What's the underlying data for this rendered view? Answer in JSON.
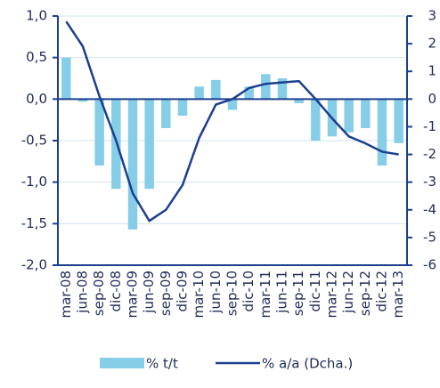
{
  "chart_data": {
    "type": "bar",
    "categories": [
      "mar-08",
      "jun-08",
      "sep-08",
      "dic-08",
      "mar-09",
      "jun-09",
      "sep-09",
      "dic-09",
      "mar-10",
      "jun-10",
      "sep-10",
      "dic-10",
      "mar-11",
      "jun-11",
      "sep-11",
      "dic-11",
      "mar-12",
      "jun-12",
      "sep-12",
      "dic-12",
      "mar-13"
    ],
    "series": [
      {
        "name": "% t/t",
        "type": "bar",
        "color": "#86cde8",
        "values": [
          0.5,
          -0.03,
          -0.8,
          -1.08,
          -1.57,
          -1.08,
          -0.35,
          -0.2,
          0.15,
          0.23,
          -0.13,
          0.15,
          0.3,
          0.25,
          -0.05,
          -0.5,
          -0.45,
          -0.4,
          -0.35,
          -0.8,
          -0.53
        ]
      },
      {
        "name": "% a/a (Dcha.)",
        "type": "line",
        "axis": "y2",
        "color": "#1b3f8f",
        "values": [
          2.8,
          1.9,
          0.1,
          -1.5,
          -3.4,
          -4.4,
          -4.0,
          -3.1,
          -1.4,
          -0.2,
          0.0,
          0.4,
          0.55,
          0.6,
          0.65,
          0.0,
          -0.7,
          -1.35,
          -1.6,
          -1.9,
          -2.0
        ]
      }
    ],
    "ylim": [
      -2.0,
      1.0
    ],
    "yticks": [
      {
        "value": 1.0,
        "label": "1,0"
      },
      {
        "value": 0.5,
        "label": "0,5"
      },
      {
        "value": 0.0,
        "label": "0,0"
      },
      {
        "value": -0.5,
        "label": "-0,5"
      },
      {
        "value": -1.0,
        "label": "-1,0"
      },
      {
        "value": -1.5,
        "label": "-1,5"
      },
      {
        "value": -2.0,
        "label": "-2,0"
      }
    ],
    "y2lim": [
      -6,
      3
    ],
    "y2ticks": [
      3,
      2,
      1,
      0,
      -1,
      -2,
      -3,
      -4,
      -5,
      -6
    ],
    "grid": true
  }
}
